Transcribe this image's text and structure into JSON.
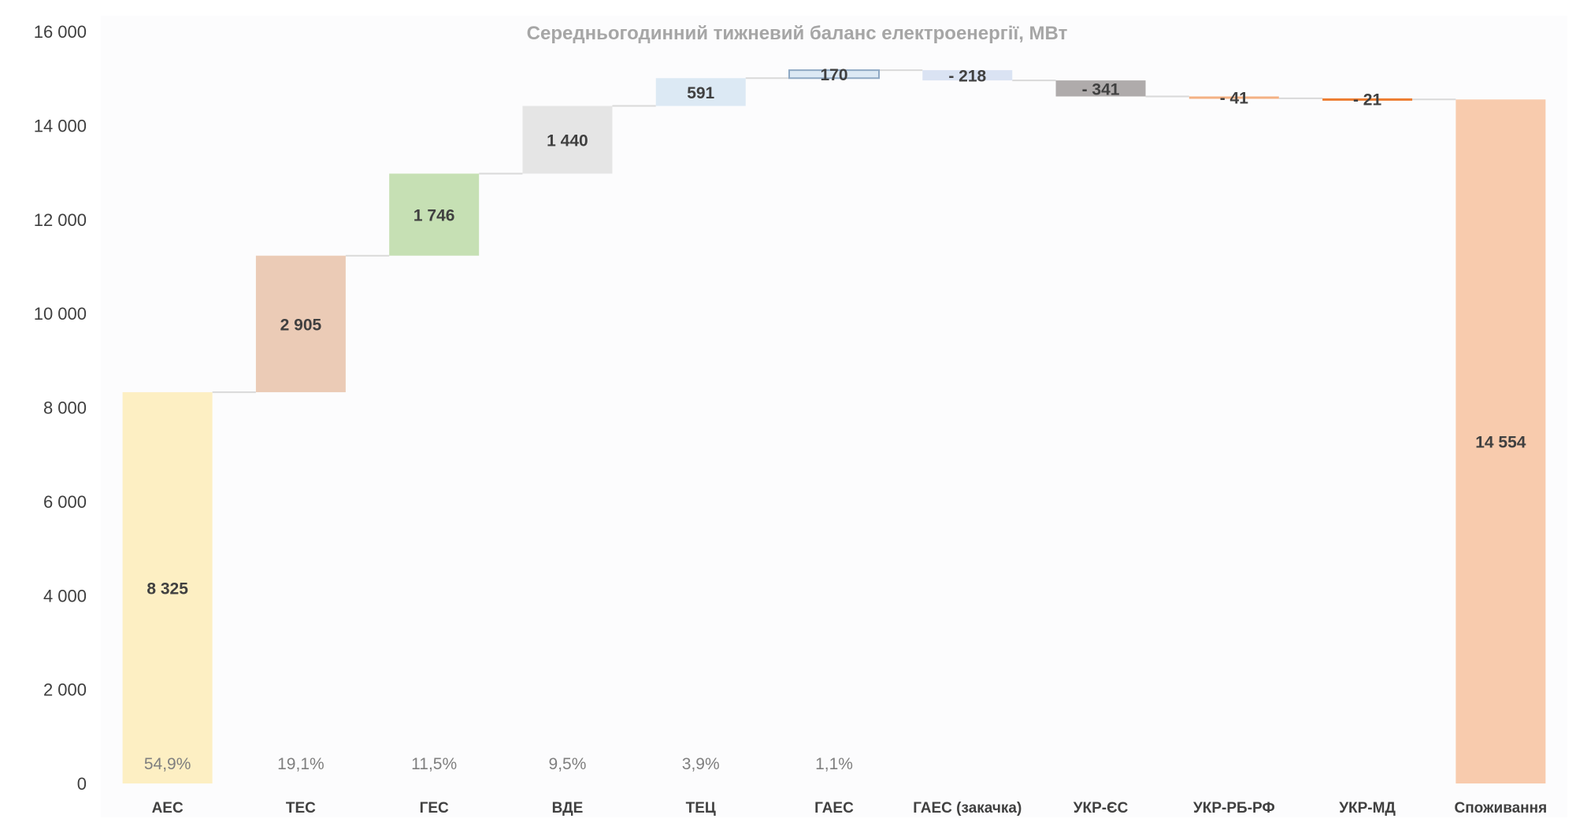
{
  "chart_data": {
    "type": "waterfall",
    "title": "Середньогодинний тижневий баланс електроенергії, МВт",
    "xlabel": "",
    "ylabel": "",
    "ylim": [
      0,
      16000
    ],
    "yticks": [
      0,
      2000,
      4000,
      6000,
      8000,
      10000,
      12000,
      14000,
      16000
    ],
    "ytick_labels": [
      "0",
      "2 000",
      "4 000",
      "6 000",
      "8 000",
      "10 000",
      "12 000",
      "14 000",
      "16 000"
    ],
    "grid": false,
    "legend": "none",
    "categories": [
      "АЕС",
      "ТЕС",
      "ГЕС",
      "ВДЕ",
      "ТЕЦ",
      "ГАЕС",
      "ГАЕС (закачка)",
      "УКР-ЄС",
      "УКР-РБ-РФ",
      "УКР-МД",
      "Споживання"
    ],
    "values": [
      8325,
      2905,
      1746,
      1440,
      591,
      170,
      -218,
      -341,
      -41,
      -21,
      14554
    ],
    "value_labels": [
      "8 325",
      "2 905",
      "1 746",
      "1 440",
      "591",
      "170",
      "- 218",
      "- 341",
      "- 41",
      "- 21",
      "14 554"
    ],
    "is_total": [
      false,
      false,
      false,
      false,
      false,
      false,
      false,
      false,
      false,
      false,
      true
    ],
    "percent_labels": [
      "54,9%",
      "19,1%",
      "11,5%",
      "9,5%",
      "3,9%",
      "1,1%",
      "",
      "",
      "",
      "",
      ""
    ],
    "colors": [
      "#fdefc3",
      "#ebcbb6",
      "#c6e0b4",
      "#e5e5e5",
      "#dce9f4",
      "#dce9f4",
      "#dae3f3",
      "#afabab",
      "#f4b183",
      "#ed7d31",
      "#f8cbad"
    ],
    "edge_colors": [
      "none",
      "none",
      "none",
      "none",
      "none",
      "#8fa9c4",
      "none",
      "none",
      "none",
      "none",
      "none"
    ],
    "total_label_color": "#000000",
    "connector_color": "#d9d9d9"
  }
}
